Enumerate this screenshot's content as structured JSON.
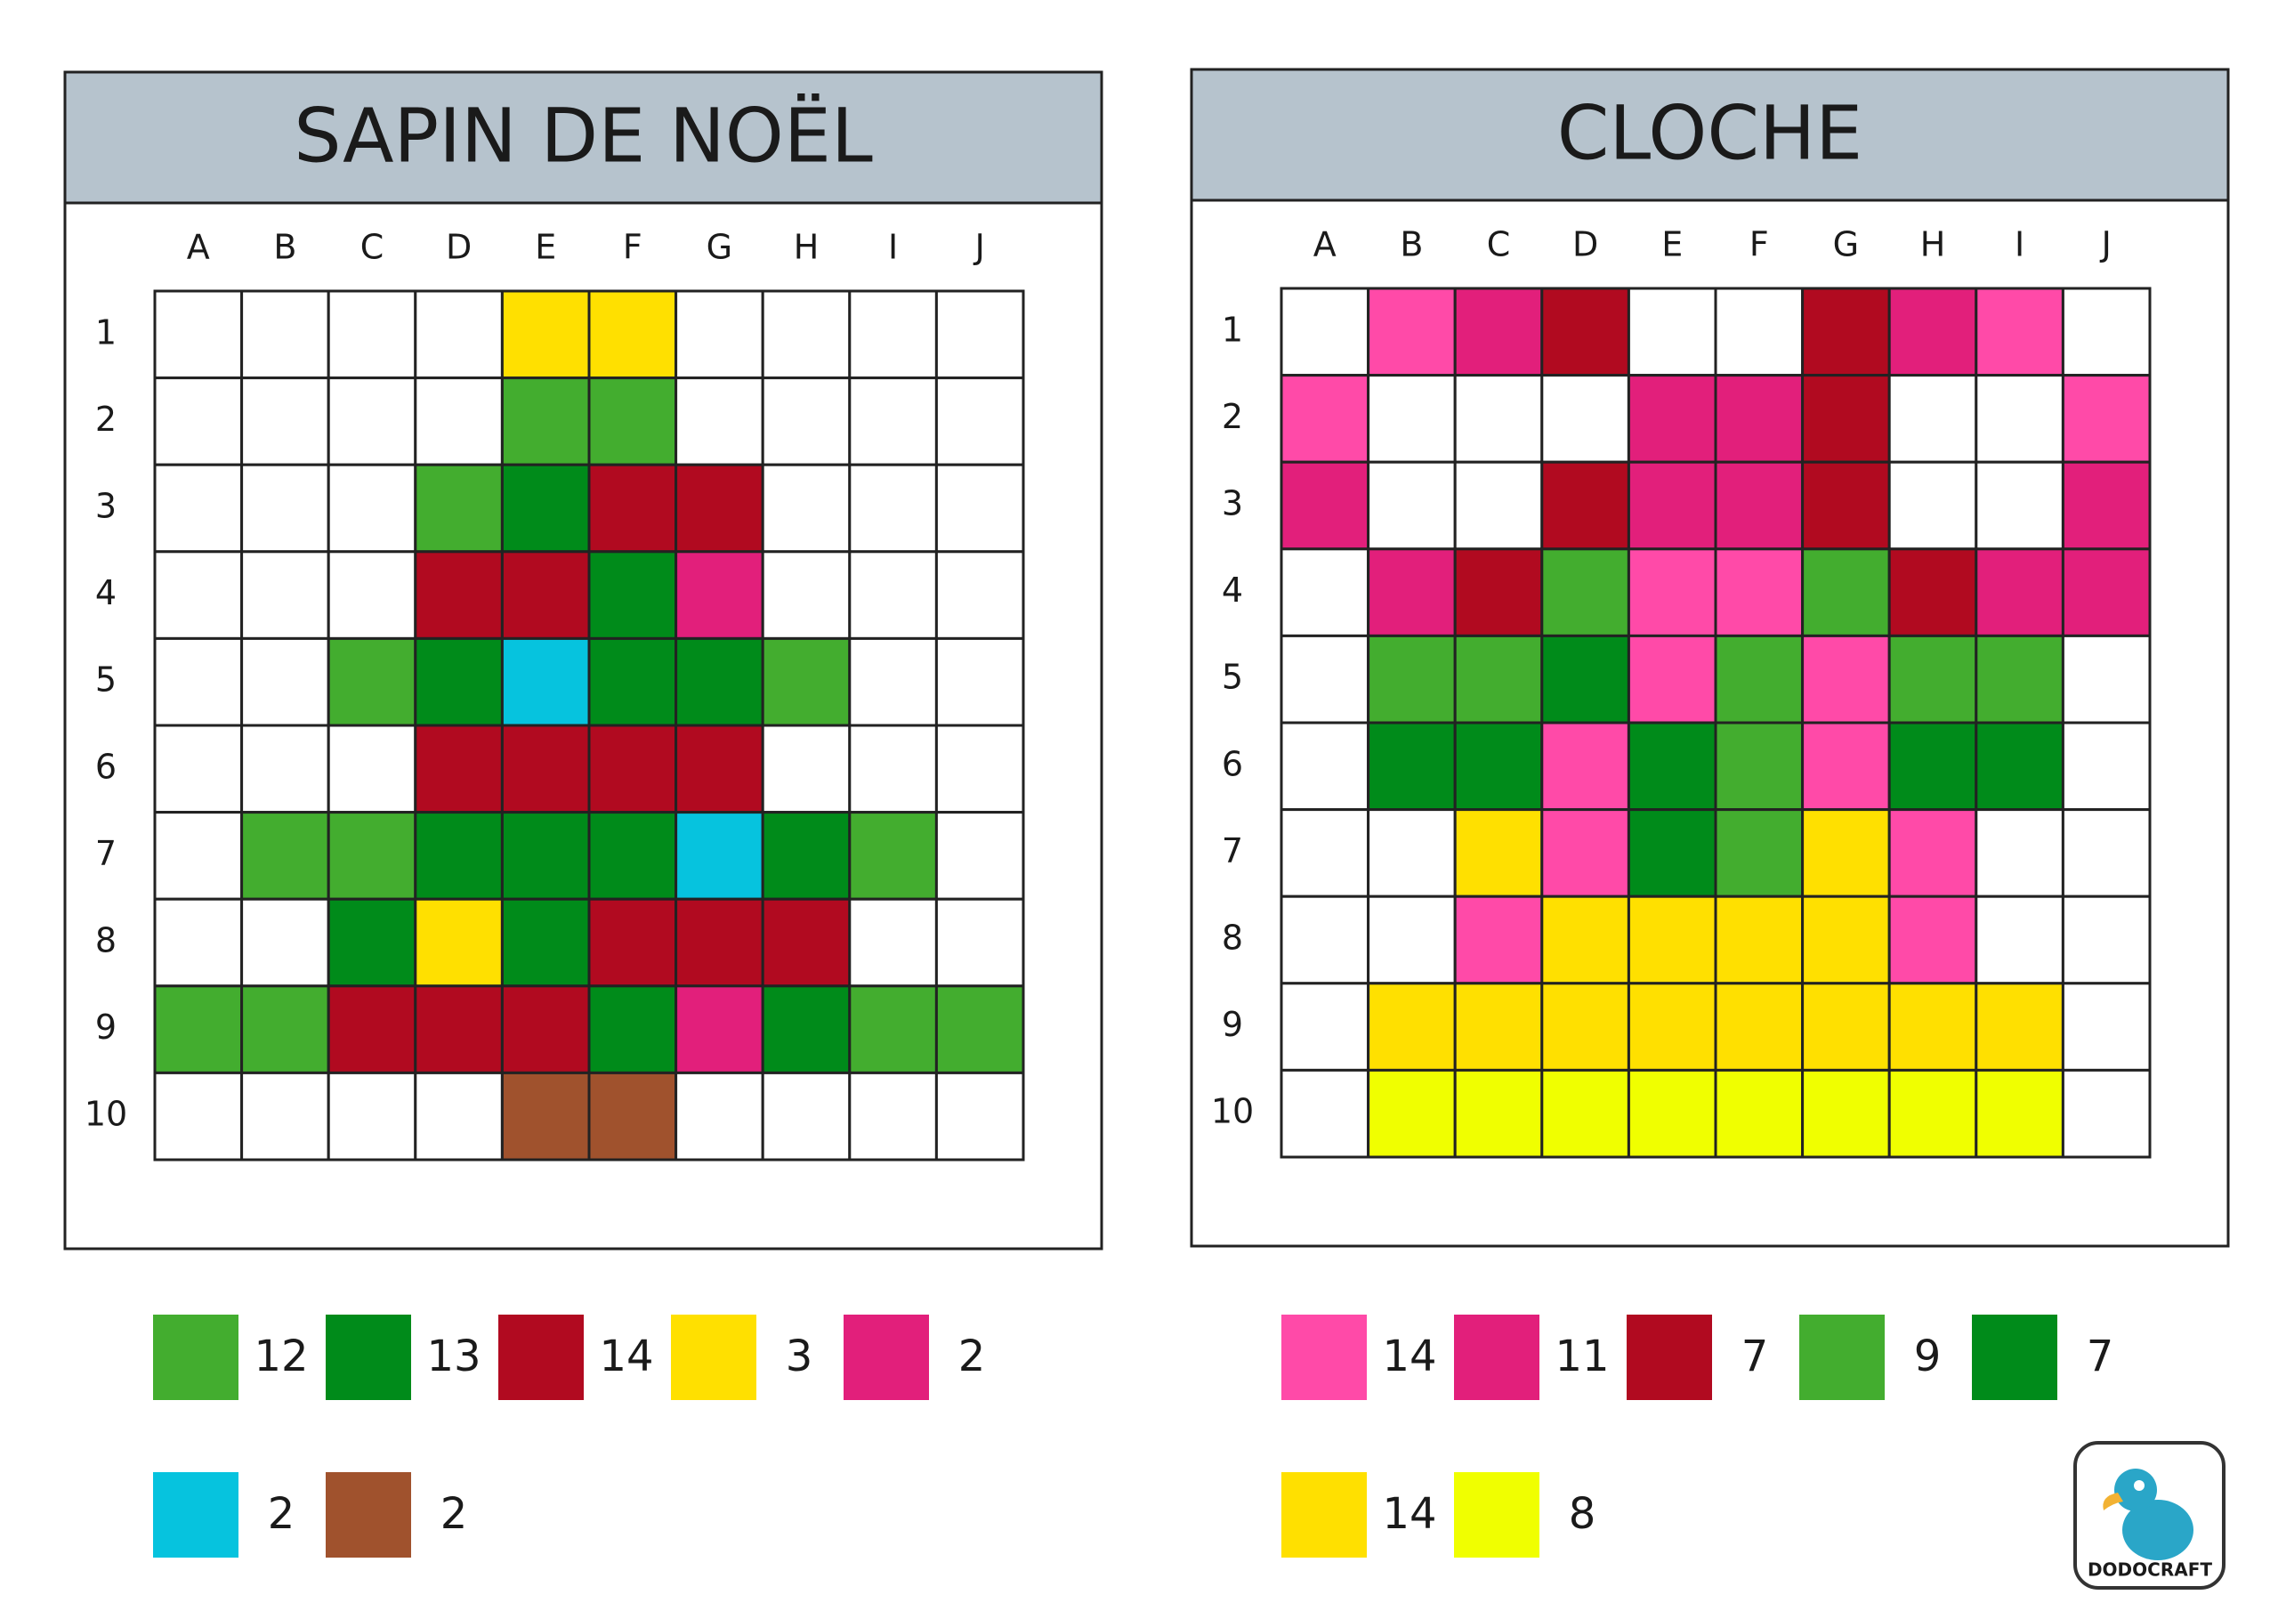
{
  "palette": {
    "W": "#ffffff",
    "LG": "#43ad2f",
    "DG": "#008b1a",
    "R": "#b10a20",
    "Y": "#ffe000",
    "P": "#e21f7b",
    "C": "#06c3de",
    "BR": "#a0522d",
    "LP": "#ff4aa8",
    "YL": "#f0ff00"
  },
  "puzzles": [
    {
      "title": "SAPIN DE NOËL",
      "columns": [
        "A",
        "B",
        "C",
        "D",
        "E",
        "F",
        "G",
        "H",
        "I",
        "J"
      ],
      "rows": [
        "1",
        "2",
        "3",
        "4",
        "5",
        "6",
        "7",
        "8",
        "9",
        "10"
      ],
      "grid": [
        [
          "W",
          "W",
          "W",
          "W",
          "Y",
          "Y",
          "W",
          "W",
          "W",
          "W"
        ],
        [
          "W",
          "W",
          "W",
          "W",
          "LG",
          "LG",
          "W",
          "W",
          "W",
          "W"
        ],
        [
          "W",
          "W",
          "W",
          "LG",
          "DG",
          "R",
          "R",
          "W",
          "W",
          "W"
        ],
        [
          "W",
          "W",
          "W",
          "R",
          "R",
          "DG",
          "P",
          "W",
          "W",
          "W"
        ],
        [
          "W",
          "W",
          "LG",
          "DG",
          "C",
          "DG",
          "DG",
          "LG",
          "W",
          "W"
        ],
        [
          "W",
          "W",
          "W",
          "R",
          "R",
          "R",
          "R",
          "W",
          "W",
          "W"
        ],
        [
          "W",
          "LG",
          "LG",
          "DG",
          "DG",
          "DG",
          "C",
          "DG",
          "LG",
          "W"
        ],
        [
          "W",
          "W",
          "DG",
          "Y",
          "DG",
          "R",
          "R",
          "R",
          "W",
          "W"
        ],
        [
          "LG",
          "LG",
          "R",
          "R",
          "R",
          "DG",
          "P",
          "DG",
          "LG",
          "LG"
        ],
        [
          "W",
          "W",
          "W",
          "W",
          "BR",
          "BR",
          "W",
          "W",
          "W",
          "W"
        ]
      ],
      "legend": [
        [
          {
            "color": "LG",
            "count": 12
          },
          {
            "color": "DG",
            "count": 13
          },
          {
            "color": "R",
            "count": 14
          },
          {
            "color": "Y",
            "count": 3
          },
          {
            "color": "P",
            "count": 2
          }
        ],
        [
          {
            "color": "C",
            "count": 2
          },
          {
            "color": "BR",
            "count": 2
          }
        ]
      ]
    },
    {
      "title": "CLOCHE",
      "columns": [
        "A",
        "B",
        "C",
        "D",
        "E",
        "F",
        "G",
        "H",
        "I",
        "J"
      ],
      "rows": [
        "1",
        "2",
        "3",
        "4",
        "5",
        "6",
        "7",
        "8",
        "9",
        "10"
      ],
      "grid": [
        [
          "W",
          "LP",
          "P",
          "R",
          "W",
          "W",
          "R",
          "P",
          "LP",
          "W"
        ],
        [
          "LP",
          "W",
          "W",
          "W",
          "P",
          "P",
          "R",
          "W",
          "W",
          "LP"
        ],
        [
          "P",
          "W",
          "W",
          "R",
          "P",
          "P",
          "R",
          "W",
          "W",
          "P"
        ],
        [
          "W",
          "P",
          "R",
          "LG",
          "LP",
          "LP",
          "LG",
          "R",
          "P",
          "P"
        ],
        [
          "W",
          "LG",
          "LG",
          "DG",
          "LP",
          "LG",
          "LP",
          "LG",
          "LG",
          "W"
        ],
        [
          "W",
          "DG",
          "DG",
          "LP",
          "DG",
          "LG",
          "LP",
          "DG",
          "DG",
          "W"
        ],
        [
          "W",
          "W",
          "Y",
          "LP",
          "DG",
          "LG",
          "Y",
          "LP",
          "W",
          "W"
        ],
        [
          "W",
          "W",
          "LP",
          "Y",
          "Y",
          "Y",
          "Y",
          "LP",
          "W",
          "W"
        ],
        [
          "W",
          "Y",
          "Y",
          "Y",
          "Y",
          "Y",
          "Y",
          "Y",
          "Y",
          "W"
        ],
        [
          "W",
          "YL",
          "YL",
          "YL",
          "YL",
          "YL",
          "YL",
          "YL",
          "YL",
          "W"
        ]
      ],
      "legend": [
        [
          {
            "color": "LP",
            "count": 14
          },
          {
            "color": "P",
            "count": 11
          },
          {
            "color": "R",
            "count": 7
          },
          {
            "color": "LG",
            "count": 9
          },
          {
            "color": "DG",
            "count": 7
          }
        ],
        [
          {
            "color": "Y",
            "count": 14
          },
          {
            "color": "YL",
            "count": 8
          }
        ]
      ]
    }
  ],
  "logo": {
    "text": "DODOCRAFT"
  }
}
